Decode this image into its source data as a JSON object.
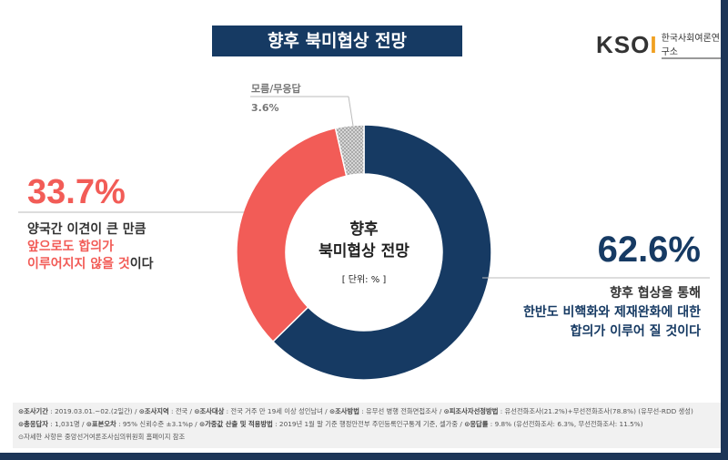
{
  "title": "향후 북미협상 전망",
  "logo": {
    "mark": "KSOI",
    "name": "한국사회여론연구소"
  },
  "chart_data": {
    "type": "pie",
    "title": "향후 북미협상 전망",
    "unit_note": "[ 단위: % ]",
    "center_line1": "향후",
    "center_line2": "북미협상 전망",
    "slices": [
      {
        "name": "positive",
        "value": 62.6,
        "label": "62.6%",
        "color": "#163a63",
        "desc": [
          "향후 협상을 통해",
          "한반도 비핵화와 제재완화에 대한",
          "합의가 이루어 질 것이다"
        ]
      },
      {
        "name": "negative",
        "value": 33.7,
        "label": "33.7%",
        "color": "#f25c57",
        "desc": [
          "양국간 이견이 큰 만큼",
          "앞으로도 합의가",
          "이루어지지 않을 것",
          "이다"
        ]
      },
      {
        "name": "dontknow",
        "value": 3.6,
        "label": "3.6%",
        "color": "#c8c8c8",
        "desc": [
          "모름/무응답"
        ]
      }
    ]
  },
  "footnote": {
    "l1": [
      [
        "조사기간",
        "2019.03.01.~02.(2일간)"
      ],
      [
        "조사지역",
        "전국"
      ],
      [
        "조사대상",
        "전국 거주 만 19세 이상 성인남녀"
      ],
      [
        "조사방법",
        "유무선 병행 전화면접조사"
      ],
      [
        "피조사자선정방법",
        "유선전화조사(21.2%)+무선전화조사(78.8%) (유무선-RDD 생성)"
      ]
    ],
    "l2": [
      [
        "총응답자",
        "1,031명"
      ],
      [
        "표본오차",
        "95% 신뢰수준 ±3.1%p"
      ],
      [
        "가중값 산출 및 적용방법",
        "2019년 1월 말 기준 행정안전부 주민등록인구통계 기준, 셀가중"
      ],
      [
        "응답률",
        "9.8% (유선전화조사: 6.3%, 무선전화조사: 11.5%)"
      ]
    ],
    "l3": "자세한 사항은 중앙선거여론조사심의위원회 홈페이지 참조"
  }
}
